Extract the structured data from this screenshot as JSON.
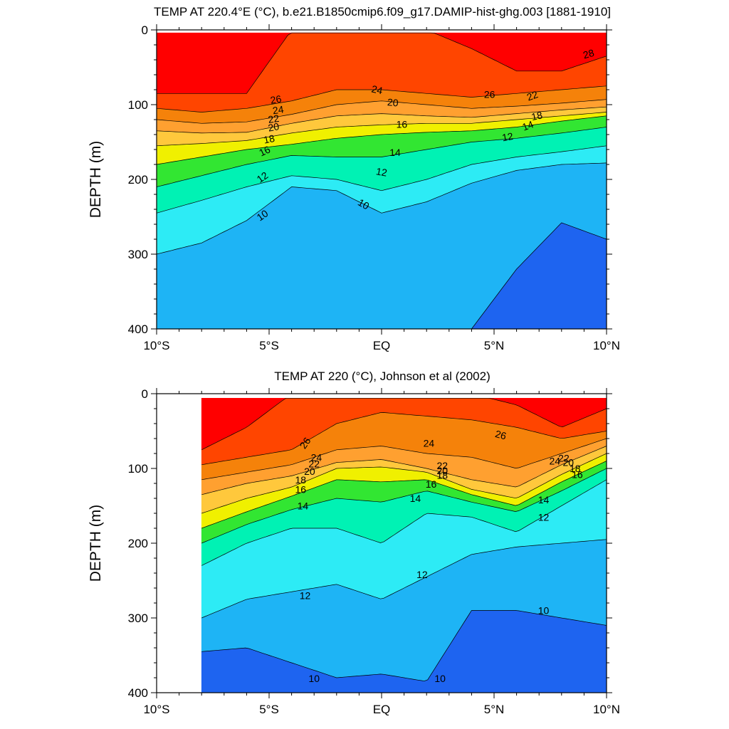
{
  "chart_data": [
    {
      "type": "contour",
      "title": "TEMP AT 220.4°E (°C), b.e21.B1850cmip6.f09_g17.DAMIP-hist-ghg.003 [1881-1910]",
      "xlabel": "",
      "ylabel": "DEPTH (m)",
      "x_ticks": [
        {
          "v": -10,
          "label": "10°S"
        },
        {
          "v": -5,
          "label": "5°S"
        },
        {
          "v": 0,
          "label": "EQ"
        },
        {
          "v": 5,
          "label": "5°N"
        },
        {
          "v": 10,
          "label": "10°N"
        }
      ],
      "y_ticks": [
        {
          "v": 0,
          "label": "0"
        },
        {
          "v": 100,
          "label": "100"
        },
        {
          "v": 200,
          "label": "200"
        },
        {
          "v": 300,
          "label": "300"
        },
        {
          "v": 400,
          "label": "400"
        }
      ],
      "xlim": [
        -10,
        10
      ],
      "ylim": [
        0,
        400
      ],
      "y_inverted": true,
      "data_xmin": -10,
      "data_ymin": 4,
      "x": [
        -10,
        -8,
        -6,
        -4,
        -2,
        0,
        2,
        4,
        6,
        8,
        10
      ],
      "isotherms": [
        {
          "t": 28,
          "depths": [
            85,
            85,
            85,
            0,
            0,
            0,
            0,
            25,
            55,
            55,
            35
          ]
        },
        {
          "t": 26,
          "depths": [
            105,
            110,
            105,
            95,
            80,
            80,
            85,
            90,
            85,
            80,
            75
          ]
        },
        {
          "t": 24,
          "depths": [
            120,
            125,
            123,
            113,
            100,
            95,
            100,
            105,
            102,
            98,
            93
          ]
        },
        {
          "t": 22,
          "depths": [
            135,
            138,
            137,
            125,
            115,
            112,
            115,
            117,
            112,
            107,
            103
          ]
        },
        {
          "t": 20,
          "depths": [
            155,
            152,
            148,
            138,
            130,
            127,
            125,
            125,
            120,
            115,
            110
          ]
        },
        {
          "t": 18,
          "depths": [
            180,
            170,
            160,
            153,
            145,
            140,
            137,
            135,
            130,
            122,
            115
          ]
        },
        {
          "t": 16,
          "depths": [
            210,
            195,
            180,
            168,
            170,
            170,
            160,
            150,
            145,
            138,
            130
          ]
        },
        {
          "t": 14,
          "depths": [
            245,
            228,
            210,
            195,
            200,
            215,
            200,
            180,
            170,
            163,
            155
          ]
        },
        {
          "t": 12,
          "depths": [
            300,
            285,
            255,
            210,
            215,
            245,
            230,
            205,
            188,
            180,
            178
          ]
        },
        {
          "t": 10,
          "depths": [
            400,
            400,
            400,
            400,
            400,
            400,
            400,
            400,
            320,
            258,
            280
          ]
        }
      ],
      "fill_bands": [
        {
          "z": 29,
          "color": "#FF0000"
        },
        {
          "z": 27,
          "color": "#FF4500"
        },
        {
          "z": 25,
          "color": "#F5820A"
        },
        {
          "z": 23,
          "color": "#FFA030"
        },
        {
          "z": 21,
          "color": "#FFC83C"
        },
        {
          "z": 19,
          "color": "#F0F000"
        },
        {
          "z": 17,
          "color": "#32E632"
        },
        {
          "z": 15,
          "color": "#00F2B4"
        },
        {
          "z": 13,
          "color": "#2DEBF5"
        },
        {
          "z": 11,
          "color": "#1EB4F5"
        },
        {
          "z": 9,
          "color": "#1E64F0"
        }
      ],
      "contour_labels": [
        "28",
        "26",
        "26",
        "24",
        "24",
        "22",
        "22",
        "20",
        "20",
        "18",
        "18",
        "16",
        "16",
        "14",
        "14",
        "12",
        "12",
        "12",
        "10",
        "10"
      ]
    },
    {
      "type": "contour",
      "title": "TEMP AT 220 (°C), Johnson et al (2002)",
      "xlabel": "",
      "ylabel": "DEPTH (m)",
      "x_ticks": [
        {
          "v": -10,
          "label": "10°S"
        },
        {
          "v": -5,
          "label": "5°S"
        },
        {
          "v": 0,
          "label": "EQ"
        },
        {
          "v": 5,
          "label": "5°N"
        },
        {
          "v": 10,
          "label": "10°N"
        }
      ],
      "y_ticks": [
        {
          "v": 0,
          "label": "0"
        },
        {
          "v": 100,
          "label": "100"
        },
        {
          "v": 200,
          "label": "200"
        },
        {
          "v": 300,
          "label": "300"
        },
        {
          "v": 400,
          "label": "400"
        }
      ],
      "xlim": [
        -10,
        10
      ],
      "ylim": [
        0,
        400
      ],
      "y_inverted": true,
      "data_xmin": -8,
      "data_ymin": 6,
      "x": [
        -8,
        -6,
        -4,
        -2,
        0,
        2,
        4,
        6,
        8,
        10
      ],
      "isotherms": [
        {
          "t": 28,
          "depths": [
            75,
            45,
            0,
            0,
            0,
            0,
            0,
            15,
            45,
            20
          ]
        },
        {
          "t": 26,
          "depths": [
            95,
            85,
            75,
            40,
            25,
            30,
            35,
            45,
            60,
            50
          ]
        },
        {
          "t": 24,
          "depths": [
            115,
            105,
            95,
            75,
            70,
            80,
            85,
            100,
            80,
            60
          ]
        },
        {
          "t": 22,
          "depths": [
            135,
            120,
            110,
            92,
            88,
            100,
            115,
            125,
            95,
            70
          ]
        },
        {
          "t": 20,
          "depths": [
            160,
            140,
            125,
            100,
            98,
            105,
            128,
            140,
            108,
            80
          ]
        },
        {
          "t": 18,
          "depths": [
            180,
            158,
            137,
            115,
            118,
            115,
            135,
            150,
            118,
            90
          ]
        },
        {
          "t": 16,
          "depths": [
            200,
            175,
            155,
            140,
            145,
            130,
            145,
            158,
            130,
            100
          ]
        },
        {
          "t": 14,
          "depths": [
            230,
            200,
            180,
            180,
            200,
            160,
            165,
            185,
            150,
            115
          ]
        },
        {
          "t": 12,
          "depths": [
            300,
            275,
            265,
            255,
            275,
            245,
            215,
            205,
            200,
            195
          ]
        },
        {
          "t": 10,
          "depths": [
            345,
            340,
            360,
            380,
            375,
            385,
            290,
            290,
            300,
            310
          ]
        }
      ],
      "fill_bands": [
        {
          "z": 29,
          "color": "#FF0000"
        },
        {
          "z": 27,
          "color": "#FF4500"
        },
        {
          "z": 25,
          "color": "#F5820A"
        },
        {
          "z": 23,
          "color": "#FFA030"
        },
        {
          "z": 21,
          "color": "#FFC83C"
        },
        {
          "z": 19,
          "color": "#F0F000"
        },
        {
          "z": 17,
          "color": "#32E632"
        },
        {
          "z": 15,
          "color": "#00F2B4"
        },
        {
          "z": 13,
          "color": "#2DEBF5"
        },
        {
          "z": 11,
          "color": "#1EB4F5"
        },
        {
          "z": 9,
          "color": "#1E64F0"
        }
      ],
      "contour_labels": [
        "26",
        "26",
        "24",
        "24",
        "24",
        "22",
        "22",
        "22",
        "20",
        "20",
        "20",
        "18",
        "18",
        "18",
        "16",
        "16",
        "16",
        "14",
        "14",
        "14",
        "12",
        "12",
        "12",
        "10",
        "10",
        "10"
      ]
    }
  ]
}
